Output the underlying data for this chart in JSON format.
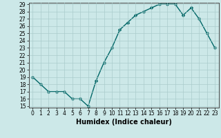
{
  "x": [
    0,
    1,
    2,
    3,
    4,
    5,
    6,
    7,
    8,
    9,
    10,
    11,
    12,
    13,
    14,
    15,
    16,
    17,
    18,
    19,
    20,
    21,
    22,
    23
  ],
  "y": [
    19,
    18,
    17,
    17,
    17,
    16,
    16,
    15,
    18.5,
    21,
    23,
    25.5,
    26.5,
    27.5,
    28,
    28.5,
    29,
    29,
    29,
    27.5,
    28.5,
    27,
    25,
    23
  ],
  "xlabel": "Humidex (Indice chaleur)",
  "ylim": [
    15,
    29
  ],
  "yticks": [
    15,
    16,
    17,
    18,
    19,
    20,
    21,
    22,
    23,
    24,
    25,
    26,
    27,
    28,
    29
  ],
  "xticks": [
    0,
    1,
    2,
    3,
    4,
    5,
    6,
    7,
    8,
    9,
    10,
    11,
    12,
    13,
    14,
    15,
    16,
    17,
    18,
    19,
    20,
    21,
    22,
    23
  ],
  "line_color": "#006666",
  "marker_color": "#006666",
  "bg_color": "#cce8e8",
  "grid_color": "#aacccc",
  "xlabel_fontsize": 7,
  "tick_fontsize": 5.5,
  "marker_size": 2.5,
  "line_width": 1.0
}
